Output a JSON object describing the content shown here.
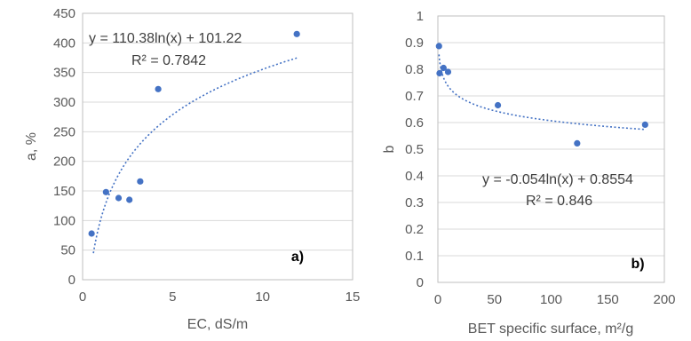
{
  "chart_data": [
    {
      "type": "scatter",
      "panel_label": "a)",
      "xlabel": "EC, dS/m",
      "ylabel": "a, %",
      "xlim": [
        0,
        15
      ],
      "ylim": [
        0,
        450
      ],
      "x_ticks": [
        0,
        5,
        10,
        15
      ],
      "y_ticks": [
        0,
        50,
        100,
        150,
        200,
        250,
        300,
        350,
        400,
        450
      ],
      "grid": "horizontal",
      "marker_color": "#4472c4",
      "points": [
        {
          "x": 0.5,
          "y": 78
        },
        {
          "x": 1.3,
          "y": 148
        },
        {
          "x": 2.0,
          "y": 138
        },
        {
          "x": 2.6,
          "y": 135
        },
        {
          "x": 3.2,
          "y": 166
        },
        {
          "x": 4.2,
          "y": 322
        },
        {
          "x": 11.9,
          "y": 415
        }
      ],
      "trendline": {
        "type": "logarithmic",
        "slope": 110.38,
        "intercept": 101.22,
        "x_range": [
          0.6,
          11.9
        ]
      },
      "equation": "y = 110.38ln(x) + 101.22",
      "r_squared": "R² = 0.7842"
    },
    {
      "type": "scatter",
      "panel_label": "b)",
      "xlabel": "BET specific surface, m²/g",
      "ylabel": "b",
      "xlim": [
        0,
        200
      ],
      "ylim": [
        0,
        1
      ],
      "x_ticks": [
        0,
        50,
        100,
        150,
        200
      ],
      "y_ticks": [
        0,
        0.1,
        0.2,
        0.3,
        0.4,
        0.5,
        0.6,
        0.7,
        0.8,
        0.9,
        1
      ],
      "grid": "horizontal",
      "marker_color": "#4472c4",
      "points": [
        {
          "x": 1,
          "y": 0.887
        },
        {
          "x": 1.5,
          "y": 0.785
        },
        {
          "x": 5,
          "y": 0.805
        },
        {
          "x": 9,
          "y": 0.79
        },
        {
          "x": 53,
          "y": 0.665
        },
        {
          "x": 123,
          "y": 0.522
        },
        {
          "x": 183,
          "y": 0.592
        }
      ],
      "trendline": {
        "type": "logarithmic",
        "slope": -0.054,
        "intercept": 0.8554,
        "x_range": [
          1,
          183
        ]
      },
      "equation": "y = -0.054ln(x) + 0.8554",
      "r_squared": "R² = 0.846"
    }
  ]
}
